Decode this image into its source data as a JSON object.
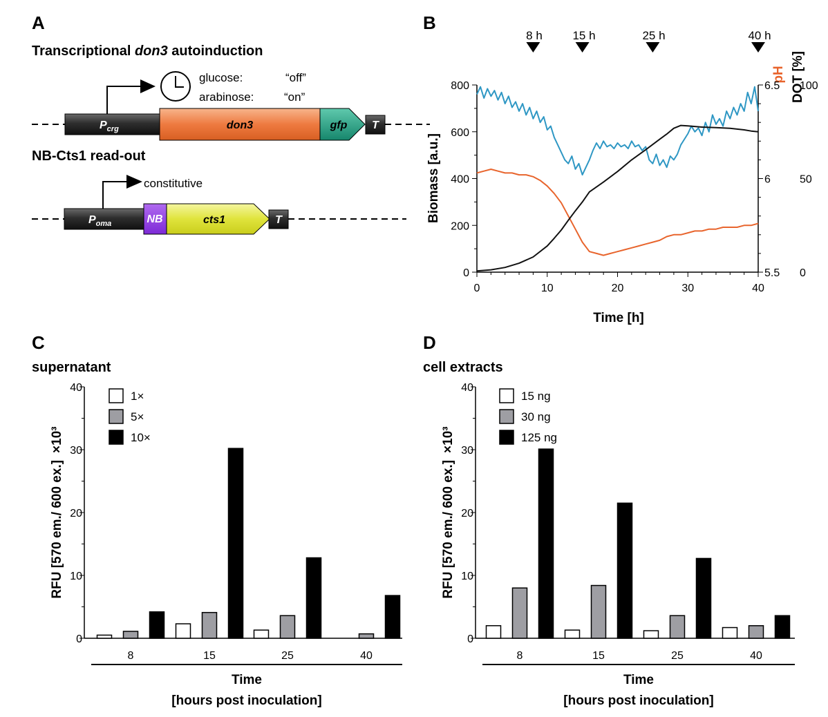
{
  "panels": {
    "a": "A",
    "b": "B",
    "c": "C",
    "d": "D"
  },
  "panel_a": {
    "heading_prefix": "Transcriptional ",
    "heading_gene": "don3",
    "heading_suffix": " autoinduction",
    "construct1": {
      "promoter": "P",
      "promoter_sub": "crg",
      "gene": "don3",
      "tag": "gfp",
      "terminator": "T",
      "induction_lines": [
        {
          "sugar": "glucose:",
          "state": "“off”"
        },
        {
          "sugar": "arabinose:",
          "state": "“on”"
        }
      ]
    },
    "heading2": "NB-Cts1 read-out",
    "construct2": {
      "promoter": "P",
      "promoter_sub": "oma",
      "nb": "NB",
      "gene": "cts1",
      "terminator": "T",
      "expression": "constitutive"
    }
  },
  "colors": {
    "biomass": "#111111",
    "ph": "#e8642c",
    "dot": "#2e97c4",
    "white": "#ffffff",
    "grey": "#9e9ea3",
    "black": "#000000"
  },
  "chart_data": [
    {
      "type": "line",
      "panel": "B",
      "xlabel": "Time [h]",
      "xlim": [
        0,
        40
      ],
      "xticks": [
        "0",
        "10",
        "20",
        "30",
        "40"
      ],
      "ylabel_left": "Biomass [a.u.]",
      "ylim_left": [
        0,
        800
      ],
      "yticks_left": [
        "0",
        "200",
        "400",
        "600",
        "800"
      ],
      "ylabel_right1": "pH",
      "ylim_right1": [
        5.5,
        6.5
      ],
      "yticks_right1": [
        "5.5",
        "6",
        "6.5"
      ],
      "ylabel_right2": "DOT [%]",
      "ylim_right2": [
        0,
        100
      ],
      "yticks_right2": [
        "0",
        "50",
        "100"
      ],
      "markers": [
        {
          "label": "8 h",
          "time": 8
        },
        {
          "label": "15 h",
          "time": 15
        },
        {
          "label": "25 h",
          "time": 25
        },
        {
          "label": "40 h",
          "time": 40
        }
      ],
      "series": [
        {
          "name": "Biomass",
          "axis": "left",
          "x": [
            0,
            2,
            4,
            6,
            8,
            10,
            11,
            12,
            13,
            14,
            15,
            16,
            18,
            20,
            22,
            24,
            26,
            27,
            28,
            29,
            30,
            32,
            34,
            36,
            38,
            39,
            40
          ],
          "y": [
            5,
            10,
            20,
            38,
            65,
            112,
            145,
            180,
            222,
            262,
            300,
            343,
            385,
            430,
            480,
            523,
            568,
            590,
            615,
            627,
            625,
            620,
            618,
            615,
            608,
            603,
            600
          ]
        },
        {
          "name": "pH",
          "axis": "right1",
          "x": [
            0,
            1,
            2,
            3,
            4,
            5,
            6,
            7,
            8,
            9,
            10,
            11,
            12,
            13,
            14,
            15,
            16,
            17,
            18,
            19,
            20,
            21,
            22,
            23,
            24,
            25,
            26,
            27,
            28,
            29,
            30,
            31,
            32,
            33,
            34,
            35,
            36,
            37,
            38,
            39,
            40
          ],
          "y": [
            6.03,
            6.04,
            6.05,
            6.04,
            6.03,
            6.03,
            6.02,
            6.02,
            6.01,
            5.99,
            5.96,
            5.92,
            5.87,
            5.8,
            5.73,
            5.66,
            5.61,
            5.6,
            5.59,
            5.6,
            5.61,
            5.62,
            5.63,
            5.64,
            5.65,
            5.66,
            5.67,
            5.69,
            5.7,
            5.7,
            5.71,
            5.72,
            5.72,
            5.73,
            5.73,
            5.74,
            5.74,
            5.74,
            5.75,
            5.75,
            5.76
          ]
        },
        {
          "name": "DOT",
          "axis": "right2",
          "x": [
            0,
            0.5,
            1,
            1.5,
            2,
            2.5,
            3,
            3.5,
            4,
            4.5,
            5,
            5.5,
            6,
            6.5,
            7,
            7.5,
            8,
            8.5,
            9,
            9.5,
            10,
            10.5,
            11,
            11.5,
            12,
            12.5,
            13,
            13.5,
            14,
            14.5,
            15,
            15.5,
            16,
            16.5,
            17,
            17.5,
            18,
            18.5,
            19,
            19.5,
            20,
            20.5,
            21,
            21.5,
            22,
            22.5,
            23,
            23.5,
            24,
            24.5,
            25,
            25.5,
            26,
            26.5,
            27,
            27.5,
            28,
            28.5,
            29,
            29.5,
            30,
            30.5,
            31,
            31.5,
            32,
            32.5,
            33,
            33.5,
            34,
            34.5,
            35,
            35.5,
            36,
            36.5,
            37,
            37.5,
            38,
            38.5,
            39,
            39.5,
            40
          ],
          "y": [
            95,
            99,
            93,
            98,
            94,
            97,
            92,
            96,
            90,
            94,
            88,
            91,
            86,
            90,
            84,
            88,
            82,
            86,
            80,
            83,
            76,
            78,
            72,
            68,
            64,
            60,
            58,
            62,
            55,
            58,
            52,
            56,
            60,
            65,
            69,
            66,
            70,
            67,
            68,
            66,
            69,
            67,
            68,
            66,
            70,
            67,
            68,
            65,
            67,
            60,
            58,
            63,
            57,
            60,
            56,
            62,
            60,
            63,
            68,
            71,
            74,
            78,
            75,
            77,
            73,
            80,
            75,
            84,
            79,
            82,
            78,
            86,
            82,
            88,
            84,
            90,
            86,
            96,
            90,
            99,
            86
          ]
        }
      ]
    },
    {
      "type": "bar",
      "panel": "C",
      "title": "supernatant",
      "ylabel": "RFU [570 em./ 600 ex.]",
      "ylabel_unit": "×10³",
      "ylim": [
        0,
        40
      ],
      "yticks": [
        "0",
        "10",
        "20",
        "30",
        "40"
      ],
      "categories": [
        "8",
        "15",
        "25",
        "40"
      ],
      "xlabel_line1": "Time",
      "xlabel_line2": "[hours post inoculation]",
      "series": [
        {
          "name": "1×",
          "color": "#ffffff",
          "values": [
            0.5,
            2.3,
            1.3,
            0
          ]
        },
        {
          "name": "5×",
          "color": "#9e9ea3",
          "values": [
            1.1,
            4.1,
            3.6,
            0.7
          ]
        },
        {
          "name": "10×",
          "color": "#000000",
          "values": [
            4.2,
            30.2,
            12.8,
            6.8
          ]
        }
      ]
    },
    {
      "type": "bar",
      "panel": "D",
      "title": "cell extracts",
      "ylabel": "RFU [570 em./ 600 ex.]",
      "ylabel_unit": "×10³",
      "ylim": [
        0,
        40
      ],
      "yticks": [
        "0",
        "10",
        "20",
        "30",
        "40"
      ],
      "categories": [
        "8",
        "15",
        "25",
        "40"
      ],
      "xlabel_line1": "Time",
      "xlabel_line2": "[hours post inoculation]",
      "series": [
        {
          "name": "15 ng",
          "color": "#ffffff",
          "values": [
            2.0,
            1.3,
            1.2,
            1.7
          ]
        },
        {
          "name": "30 ng",
          "color": "#9e9ea3",
          "values": [
            8.0,
            8.4,
            3.6,
            2.0
          ]
        },
        {
          "name": "125 ng",
          "color": "#000000",
          "values": [
            30.1,
            21.5,
            12.7,
            3.6
          ]
        }
      ]
    }
  ]
}
